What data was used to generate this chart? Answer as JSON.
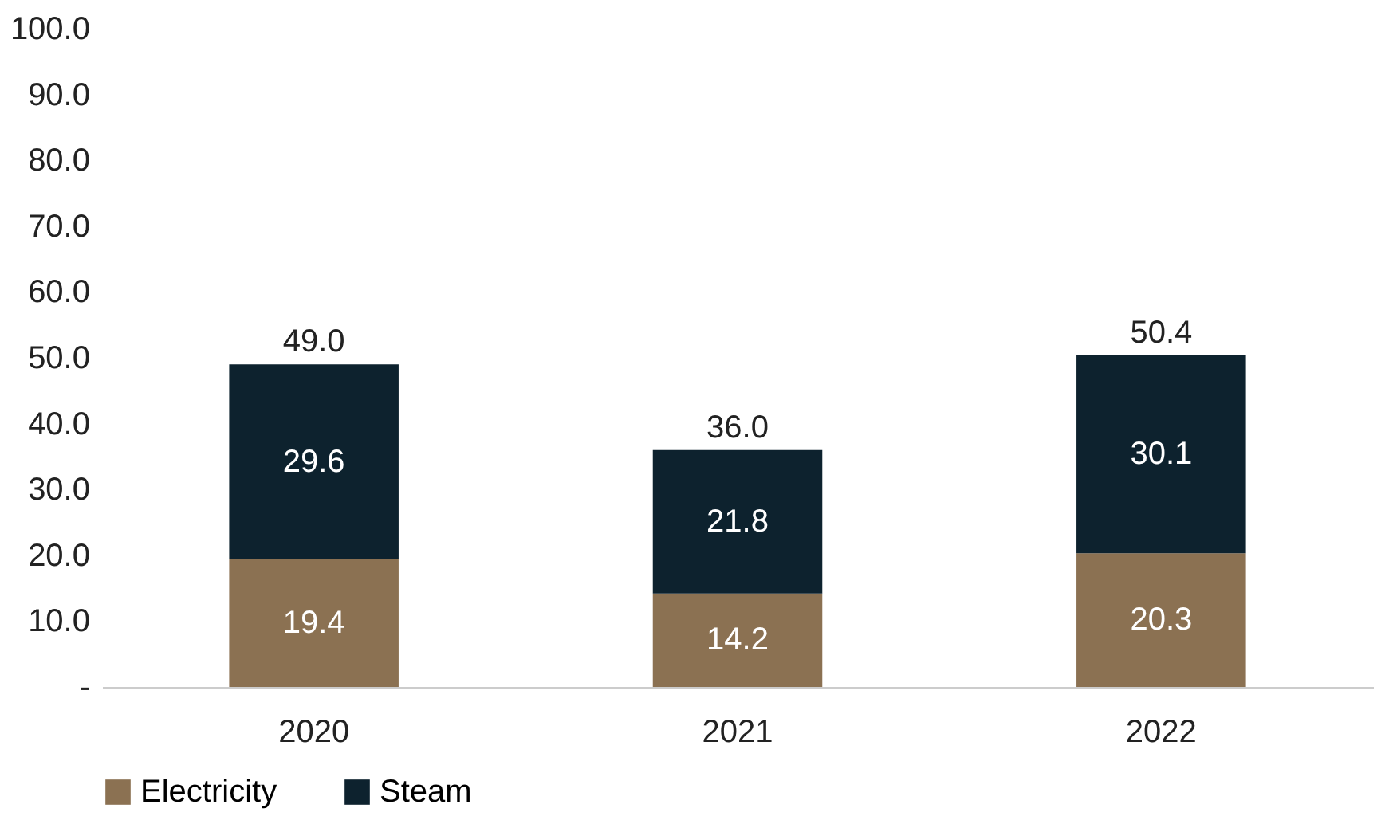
{
  "chart_data": {
    "type": "bar",
    "stacked": true,
    "categories": [
      "2020",
      "2021",
      "2022"
    ],
    "series": [
      {
        "name": "Electricity",
        "color": "#8b7152",
        "values": [
          19.4,
          14.2,
          20.3
        ]
      },
      {
        "name": "Steam",
        "color": "#0d222e",
        "values": [
          29.6,
          21.8,
          30.1
        ]
      }
    ],
    "totals": [
      "49.0",
      "36.0",
      "50.4"
    ],
    "data_labels": true,
    "ylim": [
      0,
      100
    ],
    "yticks": [
      {
        "value": 0,
        "label": "-"
      },
      {
        "value": 10,
        "label": "10.0"
      },
      {
        "value": 20,
        "label": "20.0"
      },
      {
        "value": 30,
        "label": "30.0"
      },
      {
        "value": 40,
        "label": "40.0"
      },
      {
        "value": 50,
        "label": "50.0"
      },
      {
        "value": 60,
        "label": "60.0"
      },
      {
        "value": 70,
        "label": "70.0"
      },
      {
        "value": 80,
        "label": "80.0"
      },
      {
        "value": 90,
        "label": "90.0"
      },
      {
        "value": 100,
        "label": "100.0"
      }
    ],
    "grid": false,
    "legend": "bottom"
  }
}
